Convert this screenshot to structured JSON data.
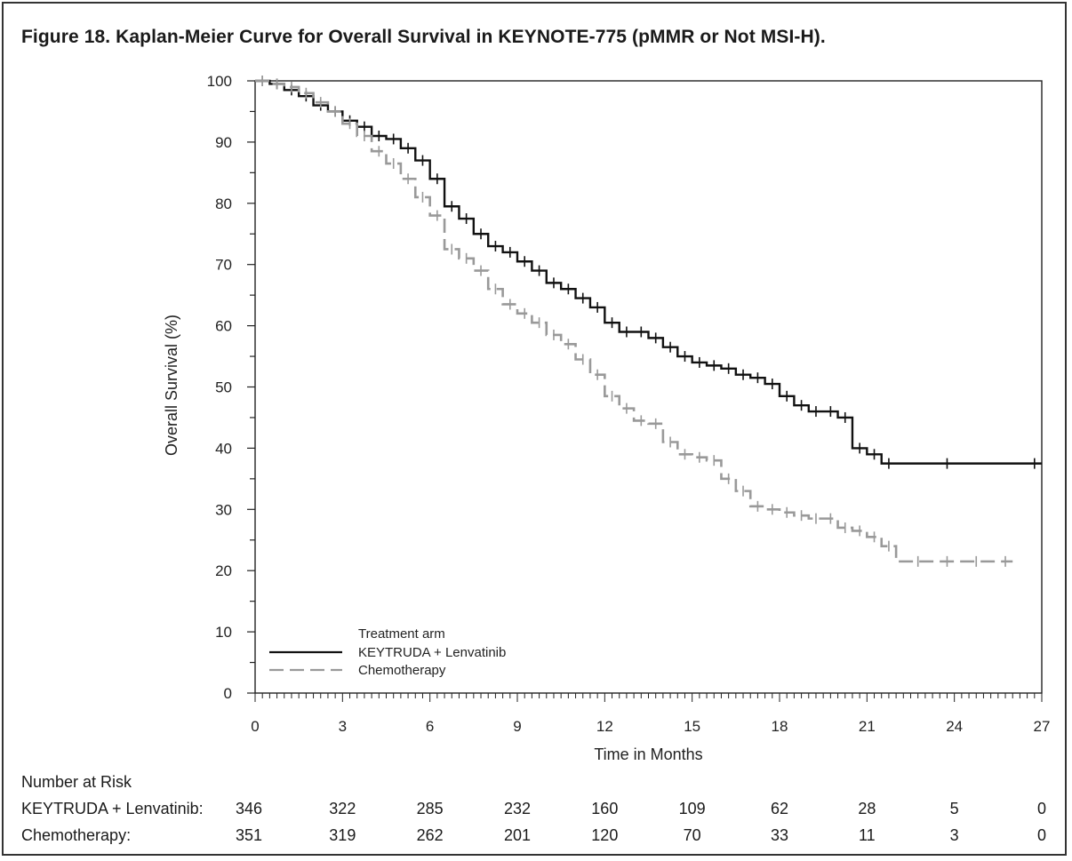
{
  "title": "Figure 18. Kaplan-Meier Curve for Overall Survival in KEYNOTE-775 (pMMR or Not MSI-H).",
  "chart_data": {
    "type": "line",
    "title": "Figure 18. Kaplan-Meier Curve for Overall Survival in KEYNOTE-775 (pMMR or Not MSI-H).",
    "xlabel": "Time in Months",
    "ylabel": "Overall Survival (%)",
    "xlim": [
      0,
      27
    ],
    "ylim": [
      0,
      100
    ],
    "xticks": [
      0,
      3,
      6,
      9,
      12,
      15,
      18,
      21,
      24,
      27
    ],
    "yticks": [
      0,
      10,
      20,
      30,
      40,
      50,
      60,
      70,
      80,
      90,
      100
    ],
    "grid": false,
    "legend": {
      "title": "Treatment arm",
      "placement": "bottom-left",
      "entries": [
        "KEYTRUDA + Lenvatinib",
        "Chemotherapy"
      ]
    },
    "series": [
      {
        "name": "KEYTRUDA + Lenvatinib",
        "color": "#111111",
        "dash": "solid",
        "x": [
          0,
          0.5,
          1.0,
          1.5,
          2.0,
          2.5,
          3.0,
          3.5,
          4.0,
          4.5,
          5.0,
          5.5,
          6.0,
          6.5,
          7.0,
          7.5,
          8.0,
          8.5,
          9.0,
          9.5,
          10.0,
          10.5,
          11.0,
          11.5,
          12.0,
          12.5,
          13.0,
          13.5,
          14.0,
          14.5,
          15.0,
          15.5,
          16.0,
          16.5,
          17.0,
          17.5,
          18.0,
          18.5,
          19.0,
          19.5,
          20.0,
          20.5,
          21.0,
          21.5,
          22.0,
          24.0,
          27.0
        ],
        "y": [
          100,
          99.5,
          98.5,
          97.5,
          96,
          95,
          93.5,
          92.5,
          91,
          90.5,
          89,
          87,
          84,
          79.5,
          77.5,
          75,
          73,
          72,
          70.5,
          69,
          67,
          66,
          64.5,
          63,
          60.5,
          59,
          59,
          58,
          56.5,
          55,
          54,
          53.5,
          53,
          52,
          51.5,
          50.5,
          48.5,
          47,
          46,
          46,
          45,
          40,
          39,
          37.5,
          37.5,
          37.5,
          37.5
        ]
      },
      {
        "name": "Chemotherapy",
        "color": "#999999",
        "dash": "dashed",
        "x": [
          0,
          0.5,
          1.0,
          1.5,
          2.0,
          2.5,
          3.0,
          3.5,
          4.0,
          4.5,
          5.0,
          5.5,
          6.0,
          6.5,
          7.0,
          7.5,
          8.0,
          8.5,
          9.0,
          9.5,
          10.0,
          10.5,
          11.0,
          11.5,
          12.0,
          12.5,
          13.0,
          13.5,
          14.0,
          14.5,
          15.0,
          15.5,
          16.0,
          16.5,
          17.0,
          17.5,
          18.0,
          18.5,
          19.0,
          19.5,
          20.0,
          20.5,
          21.0,
          21.5,
          22.0,
          23.0,
          24.0,
          25.0,
          26.0
        ],
        "y": [
          100,
          99.5,
          99,
          98,
          96.5,
          95,
          93,
          91,
          88.5,
          86.5,
          84,
          81,
          78,
          72.5,
          71,
          69,
          66,
          63.5,
          62,
          60.5,
          58.5,
          57,
          54.5,
          52,
          48.5,
          46.5,
          44.5,
          44,
          41,
          39,
          38.5,
          38,
          35,
          33,
          30.5,
          30,
          29.5,
          29,
          28.5,
          28.5,
          27,
          26.5,
          25.5,
          24,
          21.5,
          21.5,
          21.5,
          21.5,
          21.5
        ]
      }
    ]
  },
  "risk_table": {
    "heading": "Number at Risk",
    "time_points": [
      0,
      3,
      6,
      9,
      12,
      15,
      18,
      21,
      24,
      27
    ],
    "rows": [
      {
        "label": "KEYTRUDA + Lenvatinib:",
        "values": [
          "346",
          "322",
          "285",
          "232",
          "160",
          "109",
          "62",
          "28",
          "5",
          "0"
        ]
      },
      {
        "label": "Chemotherapy:",
        "values": [
          "351",
          "319",
          "262",
          "201",
          "120",
          "70",
          "33",
          "11",
          "3",
          "0"
        ]
      }
    ]
  }
}
